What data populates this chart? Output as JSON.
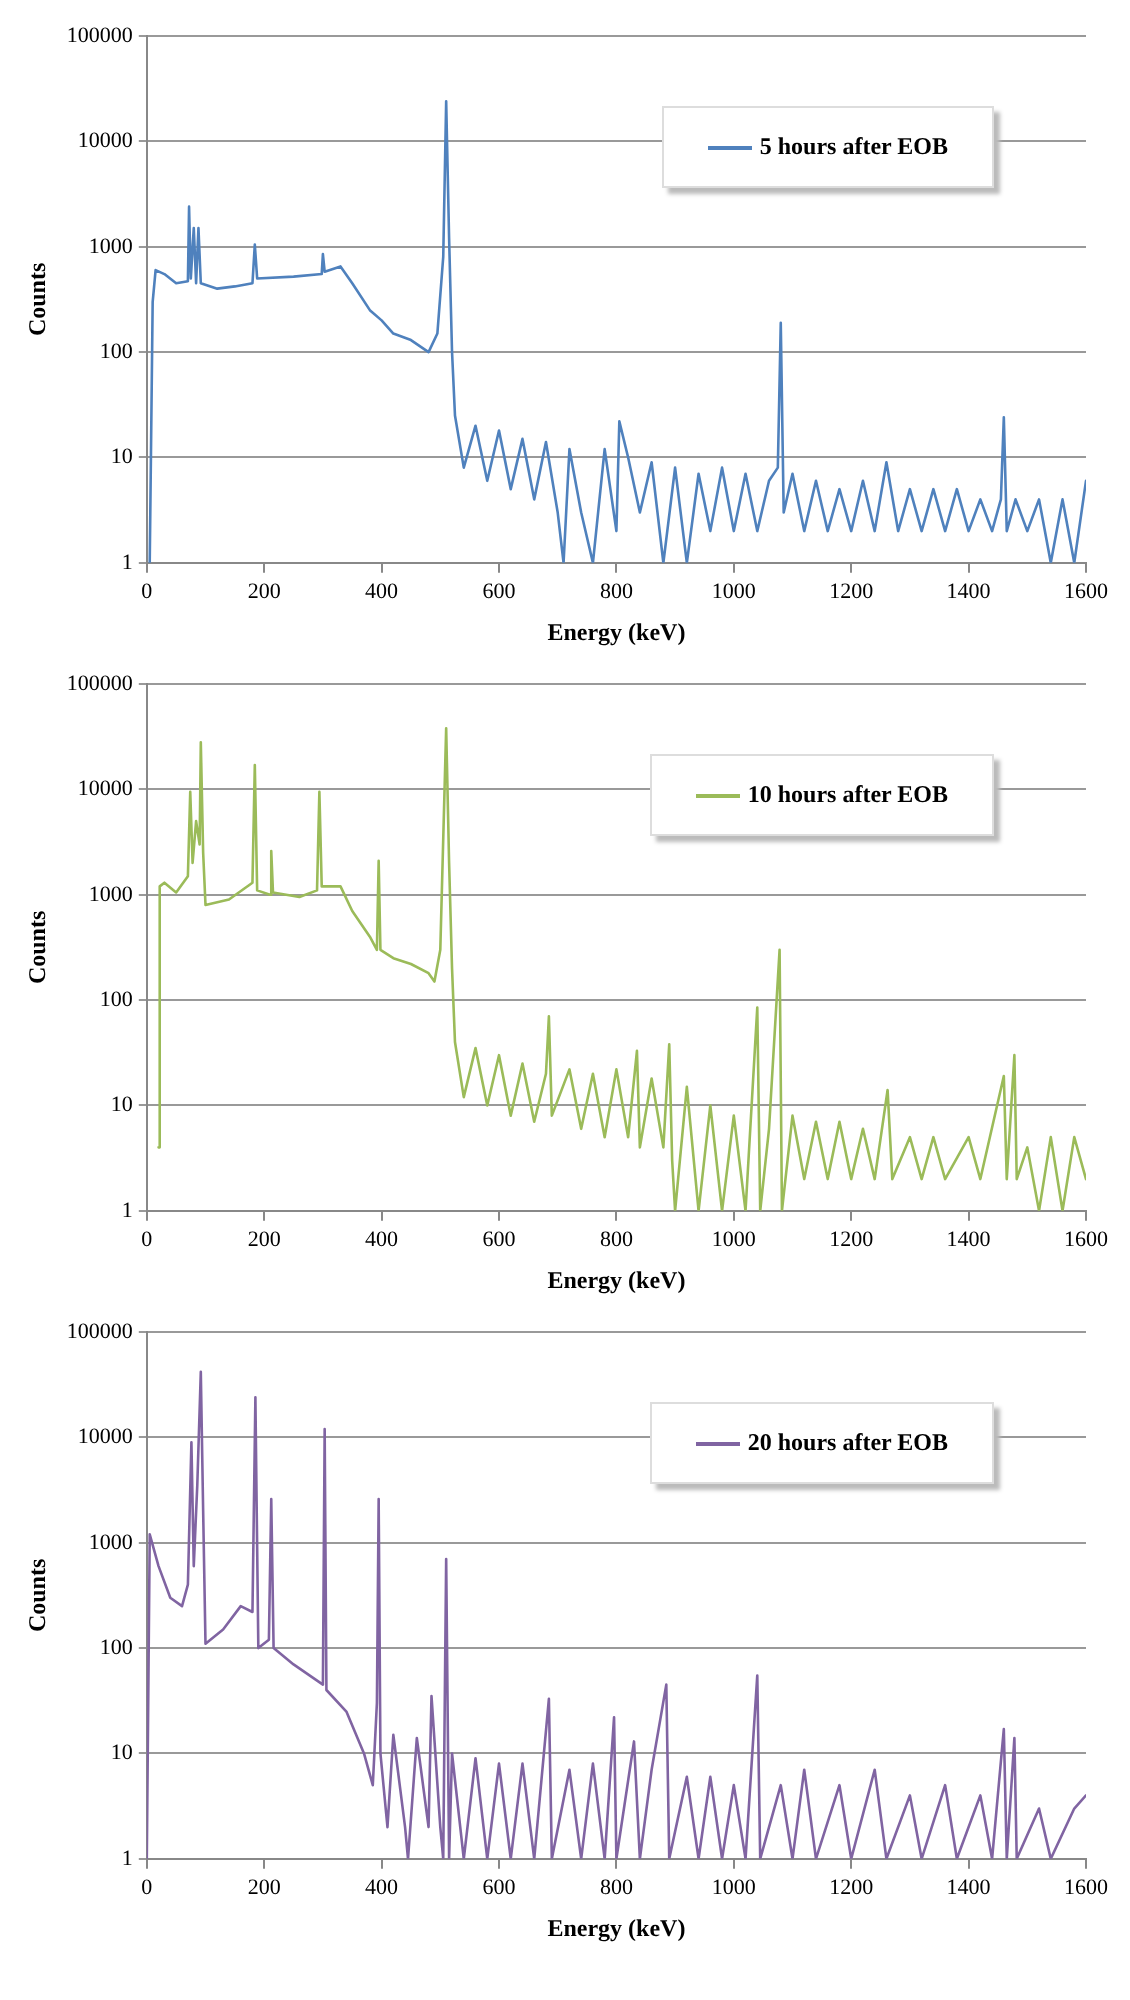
{
  "chart_data": [
    {
      "type": "line",
      "xlabel": "Energy (keV)",
      "ylabel": "Counts",
      "log": "y",
      "grid": "y",
      "legend": "top right",
      "marker": "none",
      "xlim": [
        0,
        1600
      ],
      "xticks": [
        0,
        200,
        400,
        600,
        800,
        1000,
        1200,
        1400,
        1600
      ],
      "ylim": [
        1,
        100000
      ],
      "yticks": [
        1,
        10,
        100,
        1000,
        10000,
        100000
      ],
      "series": [
        {
          "name": "5 hours after EOB",
          "color": "#4f81bd",
          "x": [
            5,
            10,
            15,
            30,
            50,
            70,
            72,
            75,
            80,
            84,
            88,
            92,
            120,
            150,
            180,
            184,
            188,
            250,
            298,
            300,
            303,
            330,
            350,
            380,
            400,
            420,
            450,
            480,
            495,
            505,
            510,
            515,
            520,
            525,
            540,
            560,
            580,
            600,
            620,
            640,
            660,
            680,
            700,
            710,
            720,
            740,
            760,
            780,
            800,
            805,
            820,
            840,
            860,
            880,
            900,
            920,
            940,
            960,
            980,
            1000,
            1020,
            1040,
            1060,
            1075,
            1080,
            1085,
            1100,
            1120,
            1140,
            1160,
            1180,
            1200,
            1220,
            1240,
            1260,
            1280,
            1300,
            1320,
            1340,
            1360,
            1380,
            1400,
            1420,
            1440,
            1455,
            1460,
            1465,
            1480,
            1500,
            1520,
            1540,
            1560,
            1580,
            1600
          ],
          "values": [
            1,
            300,
            600,
            550,
            450,
            470,
            2400,
            500,
            1500,
            450,
            1500,
            450,
            400,
            420,
            450,
            1050,
            500,
            520,
            550,
            850,
            580,
            650,
            450,
            250,
            200,
            150,
            130,
            100,
            150,
            800,
            24000,
            1200,
            100,
            25,
            8,
            20,
            6,
            18,
            5,
            15,
            4,
            14,
            3,
            1,
            12,
            3,
            1,
            12,
            2,
            22,
            10,
            3,
            9,
            1,
            8,
            1,
            7,
            2,
            8,
            2,
            7,
            2,
            6,
            8,
            190,
            3,
            7,
            2,
            6,
            2,
            5,
            2,
            6,
            2,
            9,
            2,
            5,
            2,
            5,
            2,
            5,
            2,
            4,
            2,
            4,
            24,
            2,
            4,
            2,
            4,
            1,
            4,
            1,
            6
          ]
        }
      ]
    },
    {
      "type": "line",
      "xlabel": "Energy (keV)",
      "ylabel": "Counts",
      "log": "y",
      "grid": "y",
      "legend": "top right",
      "marker": "none",
      "xlim": [
        0,
        1600
      ],
      "xticks": [
        0,
        200,
        400,
        600,
        800,
        1000,
        1200,
        1400,
        1600
      ],
      "ylim": [
        1,
        100000
      ],
      "yticks": [
        1,
        10,
        100,
        1000,
        10000,
        100000
      ],
      "series": [
        {
          "name": "10 hours after EOB",
          "color": "#9bbb59",
          "x": [
            20,
            22,
            30,
            50,
            70,
            74,
            78,
            84,
            90,
            92,
            96,
            100,
            140,
            180,
            184,
            188,
            210,
            212,
            215,
            260,
            290,
            294,
            298,
            330,
            350,
            380,
            392,
            395,
            398,
            420,
            450,
            480,
            490,
            500,
            510,
            515,
            520,
            525,
            540,
            560,
            580,
            600,
            620,
            640,
            660,
            680,
            685,
            690,
            720,
            740,
            760,
            780,
            800,
            820,
            835,
            840,
            860,
            880,
            890,
            895,
            900,
            920,
            940,
            960,
            980,
            1000,
            1020,
            1040,
            1045,
            1060,
            1078,
            1082,
            1100,
            1120,
            1140,
            1160,
            1180,
            1200,
            1220,
            1240,
            1262,
            1270,
            1300,
            1320,
            1340,
            1360,
            1400,
            1420,
            1460,
            1465,
            1478,
            1482,
            1500,
            1520,
            1540,
            1560,
            1580,
            1600
          ],
          "values": [
            4,
            1200,
            1300,
            1050,
            1500,
            9500,
            2000,
            5000,
            3000,
            28000,
            2500,
            800,
            900,
            1300,
            17000,
            1100,
            1000,
            2600,
            1050,
            950,
            1100,
            9500,
            1200,
            1200,
            700,
            400,
            300,
            2100,
            300,
            250,
            220,
            180,
            150,
            300,
            38000,
            2000,
            200,
            40,
            12,
            35,
            10,
            30,
            8,
            25,
            7,
            20,
            70,
            8,
            22,
            6,
            20,
            5,
            22,
            5,
            33,
            4,
            18,
            4,
            38,
            3,
            1,
            15,
            1,
            10,
            1,
            8,
            1,
            85,
            1,
            6,
            300,
            1,
            8,
            2,
            7,
            2,
            7,
            2,
            6,
            2,
            14,
            2,
            5,
            2,
            5,
            2,
            5,
            2,
            19,
            2,
            30,
            2,
            4,
            1,
            5,
            1,
            5,
            2
          ]
        }
      ]
    },
    {
      "type": "line",
      "xlabel": "Energy (keV)",
      "ylabel": "Counts",
      "log": "y",
      "grid": "y",
      "legend": "top right",
      "marker": "none",
      "xlim": [
        0,
        1600
      ],
      "xticks": [
        0,
        200,
        400,
        600,
        800,
        1000,
        1200,
        1400,
        1600
      ],
      "ylim": [
        1,
        100000
      ],
      "yticks": [
        1,
        10,
        100,
        1000,
        10000,
        100000
      ],
      "series": [
        {
          "name": "20 hours after EOB",
          "color": "#8064a2",
          "x": [
            0,
            5,
            20,
            40,
            60,
            70,
            76,
            80,
            86,
            92,
            96,
            100,
            130,
            160,
            180,
            185,
            190,
            208,
            212,
            216,
            250,
            300,
            303,
            306,
            340,
            370,
            385,
            392,
            395,
            398,
            410,
            420,
            440,
            445,
            460,
            480,
            485,
            500,
            505,
            510,
            515,
            520,
            540,
            560,
            580,
            600,
            620,
            640,
            660,
            685,
            690,
            720,
            740,
            760,
            780,
            796,
            800,
            830,
            840,
            860,
            885,
            890,
            920,
            940,
            960,
            980,
            1000,
            1020,
            1040,
            1045,
            1080,
            1100,
            1120,
            1140,
            1180,
            1200,
            1240,
            1260,
            1300,
            1320,
            1360,
            1380,
            1420,
            1440,
            1460,
            1465,
            1478,
            1482,
            1520,
            1540,
            1580,
            1600
          ],
          "values": [
            1,
            1200,
            600,
            300,
            250,
            400,
            9000,
            600,
            3500,
            42000,
            2000,
            110,
            150,
            250,
            220,
            24000,
            100,
            120,
            2600,
            100,
            70,
            45,
            12000,
            40,
            25,
            10,
            5,
            30,
            2600,
            10,
            2,
            15,
            2,
            1,
            14,
            2,
            35,
            2,
            1,
            700,
            1,
            10,
            1,
            9,
            1,
            8,
            1,
            8,
            1,
            33,
            1,
            7,
            1,
            8,
            1,
            22,
            1,
            13,
            1,
            7,
            45,
            1,
            6,
            1,
            6,
            1,
            5,
            1,
            55,
            1,
            5,
            1,
            7,
            1,
            5,
            1,
            7,
            1,
            4,
            1,
            5,
            1,
            4,
            1,
            17,
            1,
            14,
            1,
            3,
            1,
            3,
            4
          ]
        }
      ]
    }
  ]
}
